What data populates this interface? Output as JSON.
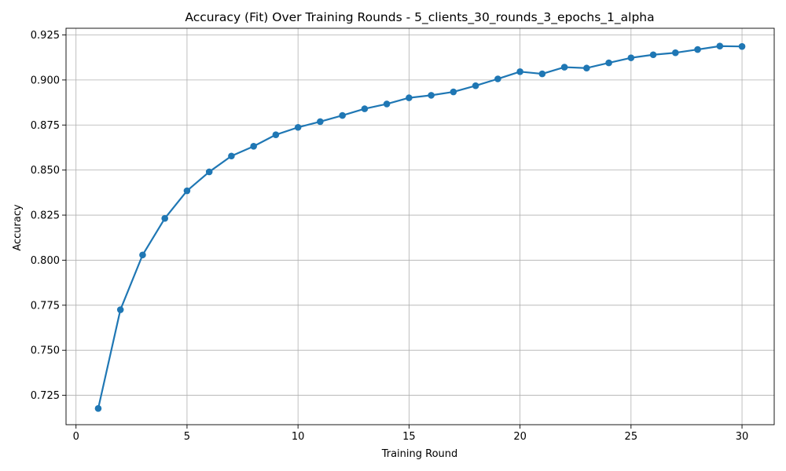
{
  "chart_data": {
    "type": "line",
    "title": "Accuracy (Fit) Over Training Rounds  - 5_clients_30_rounds_3_epochs_1_alpha",
    "xlabel": "Training Round",
    "ylabel": "Accuracy",
    "xlim": [
      -0.45,
      31.45
    ],
    "ylim": [
      0.7087,
      0.9287
    ],
    "xticks": [
      0,
      5,
      10,
      15,
      20,
      25,
      30
    ],
    "yticks": [
      0.725,
      0.75,
      0.775,
      0.8,
      0.825,
      0.85,
      0.875,
      0.9,
      0.925
    ],
    "xtick_labels": [
      "0",
      "5",
      "10",
      "15",
      "20",
      "25",
      "30"
    ],
    "ytick_labels": [
      "0.725",
      "0.750",
      "0.775",
      "0.800",
      "0.825",
      "0.850",
      "0.875",
      "0.900",
      "0.925"
    ],
    "grid": true,
    "legend": "none",
    "colors": {
      "series": "#1f77b4",
      "grid": "#b0b0b0",
      "axis": "#000000"
    },
    "series": [
      {
        "x": [
          1,
          2,
          3,
          4,
          5,
          6,
          7,
          8,
          9,
          10,
          11,
          12,
          13,
          14,
          15,
          16,
          17,
          18,
          19,
          20,
          21,
          22,
          23,
          24,
          25,
          26,
          27,
          28,
          29,
          30
        ],
        "values": [
          0.7177,
          0.7725,
          0.8029,
          0.8232,
          0.8385,
          0.849,
          0.8578,
          0.8632,
          0.8696,
          0.8737,
          0.8769,
          0.8803,
          0.884,
          0.8867,
          0.8901,
          0.8915,
          0.8934,
          0.8968,
          0.9006,
          0.9046,
          0.9034,
          0.9071,
          0.9066,
          0.9095,
          0.9123,
          0.914,
          0.9151,
          0.9169,
          0.9188,
          0.9186
        ]
      }
    ]
  }
}
